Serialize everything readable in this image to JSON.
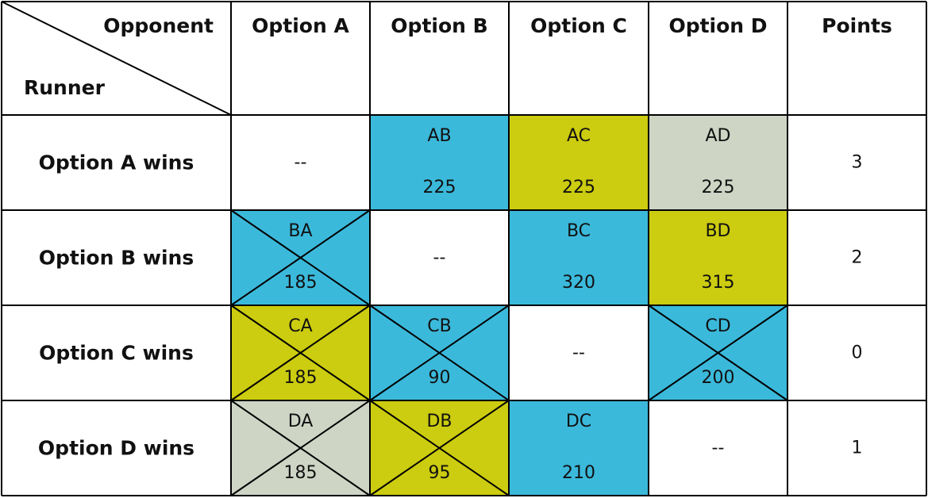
{
  "corner": {
    "top_label": "Opponent",
    "bottom_label": "Runner"
  },
  "columns": [
    "Option A",
    "Option B",
    "Option C",
    "Option D",
    "Points"
  ],
  "colors": {
    "blue": "#3bb9db",
    "yellow": "#cccc10",
    "gray": "#ced5c5",
    "white": "#ffffff",
    "line": "#000000"
  },
  "rows": [
    {
      "label": "Option A wins",
      "points": "3",
      "cells": [
        {
          "empty": true,
          "text": "--"
        },
        {
          "code": "AB",
          "value": "225",
          "color": "blue",
          "crossed": false
        },
        {
          "code": "AC",
          "value": "225",
          "color": "yellow",
          "crossed": false
        },
        {
          "code": "AD",
          "value": "225",
          "color": "gray",
          "crossed": false
        }
      ]
    },
    {
      "label": "Option B wins",
      "points": "2",
      "cells": [
        {
          "code": "BA",
          "value": "185",
          "color": "blue",
          "crossed": true
        },
        {
          "empty": true,
          "text": "--"
        },
        {
          "code": "BC",
          "value": "320",
          "color": "blue",
          "crossed": false
        },
        {
          "code": "BD",
          "value": "315",
          "color": "yellow",
          "crossed": false
        }
      ]
    },
    {
      "label": "Option C wins",
      "points": "0",
      "cells": [
        {
          "code": "CA",
          "value": "185",
          "color": "yellow",
          "crossed": true
        },
        {
          "code": "CB",
          "value": "90",
          "color": "blue",
          "crossed": true
        },
        {
          "empty": true,
          "text": "--"
        },
        {
          "code": "CD",
          "value": "200",
          "color": "blue",
          "crossed": true
        }
      ]
    },
    {
      "label": "Option D wins",
      "points": "1",
      "cells": [
        {
          "code": "DA",
          "value": "185",
          "color": "gray",
          "crossed": true
        },
        {
          "code": "DB",
          "value": "95",
          "color": "yellow",
          "crossed": true
        },
        {
          "code": "DC",
          "value": "210",
          "color": "blue",
          "crossed": false
        },
        {
          "empty": true,
          "text": "--"
        }
      ]
    }
  ]
}
